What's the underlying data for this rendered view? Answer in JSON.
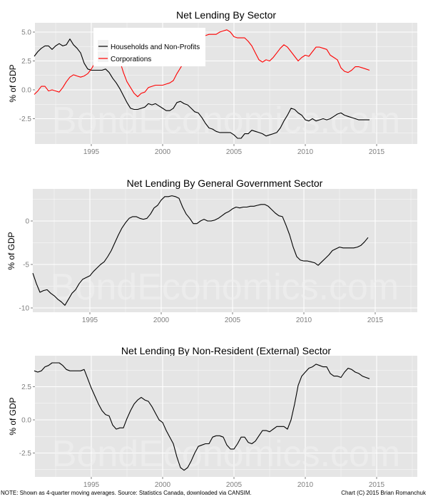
{
  "footer": {
    "note": "NOTE: Shown as 4-quarter moving averages. Source: Statistics Canada, downloaded via CANSIM.",
    "credit": "Chart (C) 2015 Brian Romanchuk"
  },
  "watermark": "BondEconomics.com",
  "colors": {
    "panel_bg": "#e5e5e5",
    "grid": "#ffffff",
    "households": "#000000",
    "corporations": "#ff0000",
    "government": "#000000",
    "external": "#000000"
  },
  "chart_data": [
    {
      "type": "line",
      "title": "Net Lending By Sector",
      "xlabel": "",
      "ylabel": "% of GDP",
      "xlim": [
        1991,
        2018
      ],
      "ylim": [
        -4.7,
        5.8
      ],
      "x_ticks": [
        "1995",
        "2000",
        "2005",
        "2010",
        "2015"
      ],
      "y_ticks": [
        "5.0",
        "2.5",
        "0.0",
        "-2.5"
      ],
      "grid": true,
      "legend_position": "top-left inside",
      "legend": [
        "Households and Non-Profits",
        "Corporations"
      ],
      "series": [
        {
          "name": "Households and Non-Profits",
          "x": [
            1991.0,
            1991.25,
            1991.5,
            1991.75,
            1992.0,
            1992.25,
            1992.5,
            1992.75,
            1993.0,
            1993.25,
            1993.5,
            1993.75,
            1994.0,
            1994.25,
            1994.5,
            1994.75,
            1995.0,
            1995.25,
            1995.5,
            1995.75,
            1996.0,
            1996.25,
            1996.5,
            1996.75,
            1997.0,
            1997.25,
            1997.5,
            1997.75,
            1998.0,
            1998.25,
            1998.5,
            1998.75,
            1999.0,
            1999.25,
            1999.5,
            1999.75,
            2000.0,
            2000.25,
            2000.5,
            2000.75,
            2001.0,
            2001.25,
            2001.5,
            2001.75,
            2002.0,
            2002.25,
            2002.5,
            2002.75,
            2003.0,
            2003.25,
            2003.5,
            2003.75,
            2004.0,
            2004.25,
            2004.5,
            2004.75,
            2005.0,
            2005.25,
            2005.5,
            2005.75,
            2006.0,
            2006.25,
            2006.5,
            2006.75,
            2007.0,
            2007.25,
            2007.5,
            2007.75,
            2008.0,
            2008.25,
            2008.5,
            2008.75,
            2009.0,
            2009.25,
            2009.5,
            2009.75,
            2010.0,
            2010.25,
            2010.5,
            2010.75,
            2011.0,
            2011.25,
            2011.5,
            2011.75,
            2012.0,
            2012.25,
            2012.5,
            2012.75,
            2013.0,
            2013.25,
            2013.5,
            2013.75,
            2014.0,
            2014.25,
            2014.5
          ],
          "values": [
            2.9,
            3.3,
            3.6,
            3.8,
            3.8,
            3.5,
            3.8,
            4.0,
            3.8,
            3.9,
            4.4,
            3.9,
            3.6,
            3.2,
            2.3,
            1.8,
            1.7,
            1.7,
            1.7,
            1.7,
            1.8,
            1.5,
            1.0,
            0.6,
            0.1,
            -0.5,
            -1.1,
            -1.6,
            -1.7,
            -1.7,
            -1.6,
            -1.5,
            -1.2,
            -1.3,
            -1.2,
            -1.4,
            -1.6,
            -1.8,
            -1.8,
            -1.6,
            -1.1,
            -1.0,
            -1.2,
            -1.3,
            -1.6,
            -1.9,
            -2.0,
            -2.4,
            -2.9,
            -3.3,
            -3.4,
            -3.6,
            -3.7,
            -3.7,
            -3.7,
            -3.7,
            -3.9,
            -4.2,
            -4.2,
            -3.8,
            -3.8,
            -3.5,
            -3.6,
            -3.7,
            -3.8,
            -4.0,
            -3.9,
            -3.8,
            -3.7,
            -3.3,
            -2.7,
            -2.2,
            -1.6,
            -1.7,
            -2.0,
            -2.2,
            -2.6,
            -2.7,
            -2.5,
            -2.7,
            -2.6,
            -2.5,
            -2.6,
            -2.5,
            -2.3,
            -2.1,
            -2.0,
            -2.2,
            -2.3,
            -2.4,
            -2.5,
            -2.6,
            -2.6,
            -2.6,
            -2.6
          ]
        },
        {
          "name": "Corporations",
          "x": [
            1991.0,
            1991.25,
            1991.5,
            1991.75,
            1992.0,
            1992.25,
            1992.5,
            1992.75,
            1993.0,
            1993.25,
            1993.5,
            1993.75,
            1994.0,
            1994.25,
            1994.5,
            1994.75,
            1995.0,
            1995.25,
            1995.5,
            1995.75,
            1996.0,
            1996.25,
            1996.5,
            1996.75,
            1997.0,
            1997.25,
            1997.5,
            1997.75,
            1998.0,
            1998.25,
            1998.5,
            1998.75,
            1999.0,
            1999.25,
            1999.5,
            1999.75,
            2000.0,
            2000.25,
            2000.5,
            2000.75,
            2001.0,
            2001.25,
            2001.5,
            2001.75,
            2002.0,
            2002.25,
            2002.5,
            2002.75,
            2003.0,
            2003.25,
            2003.5,
            2003.75,
            2004.0,
            2004.25,
            2004.5,
            2004.75,
            2005.0,
            2005.25,
            2005.5,
            2005.75,
            2006.0,
            2006.25,
            2006.5,
            2006.75,
            2007.0,
            2007.25,
            2007.5,
            2007.75,
            2008.0,
            2008.25,
            2008.5,
            2008.75,
            2009.0,
            2009.25,
            2009.5,
            2009.75,
            2010.0,
            2010.25,
            2010.5,
            2010.75,
            2011.0,
            2011.25,
            2011.5,
            2011.75,
            2012.0,
            2012.25,
            2012.5,
            2012.75,
            2013.0,
            2013.25,
            2013.5,
            2013.75,
            2014.0,
            2014.25,
            2014.5
          ],
          "values": [
            -0.4,
            -0.1,
            0.3,
            0.3,
            -0.1,
            0.0,
            -0.1,
            -0.2,
            0.2,
            0.7,
            1.1,
            1.3,
            1.2,
            1.1,
            1.2,
            1.4,
            1.8,
            2.3,
            2.7,
            3.1,
            3.4,
            3.6,
            3.6,
            3.3,
            2.5,
            1.5,
            0.7,
            0.2,
            -0.3,
            -0.6,
            -0.3,
            -0.2,
            0.2,
            0.3,
            0.4,
            0.4,
            0.4,
            0.5,
            0.6,
            0.8,
            1.4,
            1.9,
            2.4,
            3.0,
            3.5,
            4.0,
            4.5,
            4.7,
            4.7,
            4.8,
            4.8,
            4.8,
            5.0,
            5.1,
            5.2,
            5.0,
            4.6,
            4.5,
            4.5,
            4.5,
            4.2,
            3.8,
            3.2,
            2.6,
            2.4,
            2.6,
            2.5,
            2.8,
            3.2,
            3.6,
            3.9,
            3.7,
            3.3,
            2.9,
            2.5,
            2.8,
            3.0,
            2.9,
            3.3,
            3.7,
            3.7,
            3.6,
            3.5,
            3.0,
            2.8,
            2.6,
            1.9,
            1.6,
            1.5,
            1.7,
            2.0,
            2.0,
            1.9,
            1.8,
            1.7
          ]
        }
      ]
    },
    {
      "type": "line",
      "title": "Net Lending By General Government Sector",
      "xlabel": "",
      "ylabel": "% of GDP",
      "xlim": [
        1991,
        2018
      ],
      "ylim": [
        -10.5,
        3.7
      ],
      "x_ticks": [
        "1995",
        "2000",
        "2005",
        "2010",
        "2015"
      ],
      "y_ticks": [
        "0",
        "-5",
        "-10"
      ],
      "grid": true,
      "series": [
        {
          "name": "General Government",
          "x": [
            1991.0,
            1991.25,
            1991.5,
            1991.75,
            1992.0,
            1992.25,
            1992.5,
            1992.75,
            1993.0,
            1993.25,
            1993.5,
            1993.75,
            1994.0,
            1994.25,
            1994.5,
            1994.75,
            1995.0,
            1995.25,
            1995.5,
            1995.75,
            1996.0,
            1996.25,
            1996.5,
            1996.75,
            1997.0,
            1997.25,
            1997.5,
            1997.75,
            1998.0,
            1998.25,
            1998.5,
            1998.75,
            1999.0,
            1999.25,
            1999.5,
            1999.75,
            2000.0,
            2000.25,
            2000.5,
            2000.75,
            2001.0,
            2001.25,
            2001.5,
            2001.75,
            2002.0,
            2002.25,
            2002.5,
            2002.75,
            2003.0,
            2003.25,
            2003.5,
            2003.75,
            2004.0,
            2004.25,
            2004.5,
            2004.75,
            2005.0,
            2005.25,
            2005.5,
            2005.75,
            2006.0,
            2006.25,
            2006.5,
            2006.75,
            2007.0,
            2007.25,
            2007.5,
            2007.75,
            2008.0,
            2008.25,
            2008.5,
            2008.75,
            2009.0,
            2009.25,
            2009.5,
            2009.75,
            2010.0,
            2010.25,
            2010.5,
            2010.75,
            2011.0,
            2011.25,
            2011.5,
            2011.75,
            2012.0,
            2012.25,
            2012.5,
            2012.75,
            2013.0,
            2013.25,
            2013.5,
            2013.75,
            2014.0,
            2014.25,
            2014.5
          ],
          "values": [
            -6.0,
            -7.2,
            -8.2,
            -8.0,
            -7.9,
            -8.3,
            -8.6,
            -9.0,
            -9.3,
            -9.7,
            -9.0,
            -8.3,
            -7.9,
            -7.2,
            -6.7,
            -6.5,
            -6.3,
            -5.8,
            -5.4,
            -5.0,
            -4.7,
            -4.1,
            -3.4,
            -2.5,
            -1.6,
            -0.8,
            -0.2,
            0.3,
            0.5,
            0.5,
            0.3,
            0.2,
            0.3,
            0.8,
            1.5,
            1.8,
            2.4,
            2.8,
            2.8,
            2.9,
            2.8,
            2.6,
            1.6,
            0.8,
            0.3,
            -0.3,
            -0.3,
            0.0,
            0.2,
            0.0,
            0.0,
            0.1,
            0.3,
            0.6,
            0.9,
            1.1,
            1.4,
            1.6,
            1.5,
            1.6,
            1.6,
            1.7,
            1.7,
            1.8,
            1.9,
            1.9,
            1.7,
            1.3,
            0.9,
            0.6,
            0.5,
            -0.5,
            -1.6,
            -3.0,
            -4.1,
            -4.5,
            -4.6,
            -4.6,
            -4.7,
            -4.8,
            -5.1,
            -4.7,
            -4.3,
            -3.9,
            -3.4,
            -3.2,
            -3.0,
            -3.1,
            -3.1,
            -3.1,
            -3.1,
            -3.0,
            -2.8,
            -2.4,
            -1.9
          ]
        }
      ]
    },
    {
      "type": "line",
      "title": "Net Lending By Non-Resident (External) Sector",
      "xlabel": "",
      "ylabel": "% of GDP",
      "xlim": [
        1991,
        2018
      ],
      "ylim": [
        -4.3,
        4.8
      ],
      "x_ticks": [
        "1995",
        "2000",
        "2005",
        "2010",
        "2015"
      ],
      "y_ticks": [
        "2.5",
        "0.0",
        "-2.5"
      ],
      "grid": true,
      "series": [
        {
          "name": "Non-Resident (External)",
          "x": [
            1991.0,
            1991.25,
            1991.5,
            1991.75,
            1992.0,
            1992.25,
            1992.5,
            1992.75,
            1993.0,
            1993.25,
            1993.5,
            1993.75,
            1994.0,
            1994.25,
            1994.5,
            1994.75,
            1995.0,
            1995.25,
            1995.5,
            1995.75,
            1996.0,
            1996.25,
            1996.5,
            1996.75,
            1997.0,
            1997.25,
            1997.5,
            1997.75,
            1998.0,
            1998.25,
            1998.5,
            1998.75,
            1999.0,
            1999.25,
            1999.5,
            1999.75,
            2000.0,
            2000.25,
            2000.5,
            2000.75,
            2001.0,
            2001.25,
            2001.5,
            2001.75,
            2002.0,
            2002.25,
            2002.5,
            2002.75,
            2003.0,
            2003.25,
            2003.5,
            2003.75,
            2004.0,
            2004.25,
            2004.5,
            2004.75,
            2005.0,
            2005.25,
            2005.5,
            2005.75,
            2006.0,
            2006.25,
            2006.5,
            2006.75,
            2007.0,
            2007.25,
            2007.5,
            2007.75,
            2008.0,
            2008.25,
            2008.5,
            2008.75,
            2009.0,
            2009.25,
            2009.5,
            2009.75,
            2010.0,
            2010.25,
            2010.5,
            2010.75,
            2011.0,
            2011.25,
            2011.5,
            2011.75,
            2012.0,
            2012.25,
            2012.5,
            2012.75,
            2013.0,
            2013.25,
            2013.5,
            2013.75,
            2014.0,
            2014.25,
            2014.5
          ],
          "values": [
            3.7,
            3.6,
            3.7,
            4.0,
            4.1,
            4.3,
            4.3,
            4.3,
            4.1,
            3.8,
            3.7,
            3.7,
            3.7,
            3.7,
            3.8,
            3.1,
            2.4,
            1.8,
            1.2,
            0.7,
            0.4,
            0.3,
            -0.4,
            -0.7,
            -0.6,
            -0.6,
            0.1,
            0.7,
            1.2,
            1.5,
            1.7,
            1.5,
            1.4,
            1.0,
            0.5,
            0.0,
            -0.2,
            -0.8,
            -1.3,
            -1.8,
            -2.8,
            -3.6,
            -3.8,
            -3.6,
            -3.1,
            -2.5,
            -2.0,
            -1.9,
            -1.8,
            -1.8,
            -1.3,
            -1.2,
            -1.2,
            -1.3,
            -1.9,
            -2.2,
            -2.2,
            -1.8,
            -1.3,
            -1.3,
            -1.7,
            -1.8,
            -1.6,
            -1.2,
            -0.8,
            -0.8,
            -0.9,
            -0.7,
            -0.5,
            -0.5,
            -0.5,
            -0.7,
            0.0,
            1.2,
            2.6,
            3.3,
            3.6,
            3.9,
            4.0,
            4.2,
            4.1,
            4.0,
            4.0,
            3.5,
            3.3,
            3.3,
            3.2,
            3.6,
            3.9,
            3.8,
            3.6,
            3.5,
            3.3,
            3.2,
            3.1
          ]
        }
      ]
    }
  ]
}
